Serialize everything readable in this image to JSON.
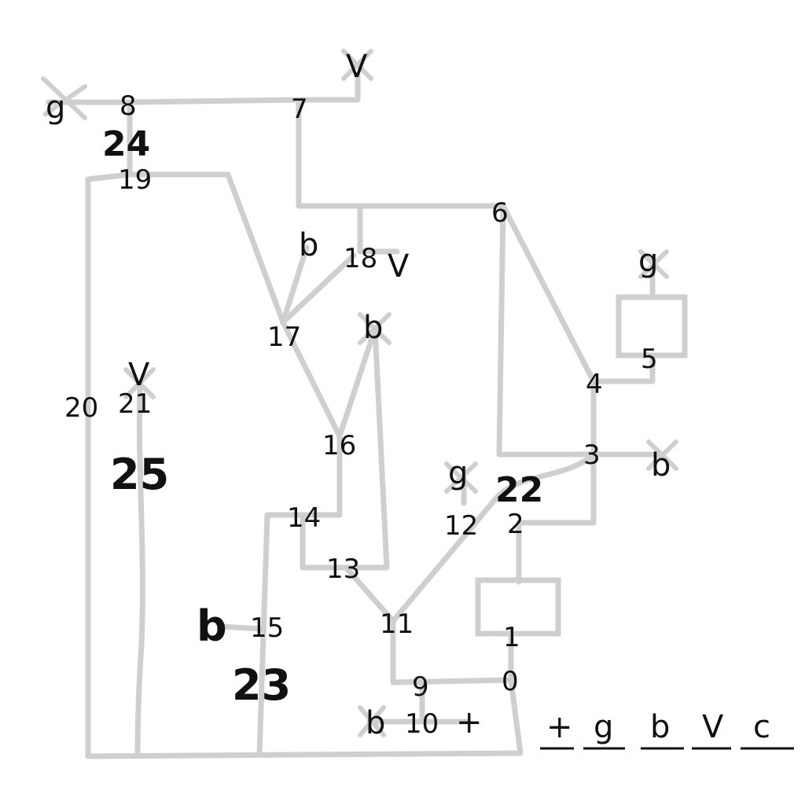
{
  "nodes": {
    "n0": "0",
    "n1": "1",
    "n2": "2",
    "n3": "3",
    "n4": "4",
    "n5": "5",
    "n6": "6",
    "n7": "7",
    "n8": "8",
    "n9": "9",
    "n10": "10",
    "n11": "11",
    "n12": "12",
    "n13": "13",
    "n14": "14",
    "n15": "15",
    "n16": "16",
    "n17": "17",
    "n18": "18",
    "n19": "19",
    "n20": "20",
    "n21": "21"
  },
  "wire_labels": {
    "w22": "22",
    "w23": "23",
    "w24": "24",
    "w25": "25"
  },
  "terminals": {
    "t_g_left": "g",
    "t_v_top": "V",
    "t_b_17": "b",
    "t_v_18": "V",
    "t_b_16": "b",
    "t_g_5": "g",
    "t_b_3": "b",
    "t_g_12": "g",
    "t_v_21": "V",
    "t_b_15": "b",
    "t_b_10": "b",
    "t_plus_10": "+"
  },
  "legend": [
    "+",
    "g",
    "b",
    "V",
    "c"
  ]
}
